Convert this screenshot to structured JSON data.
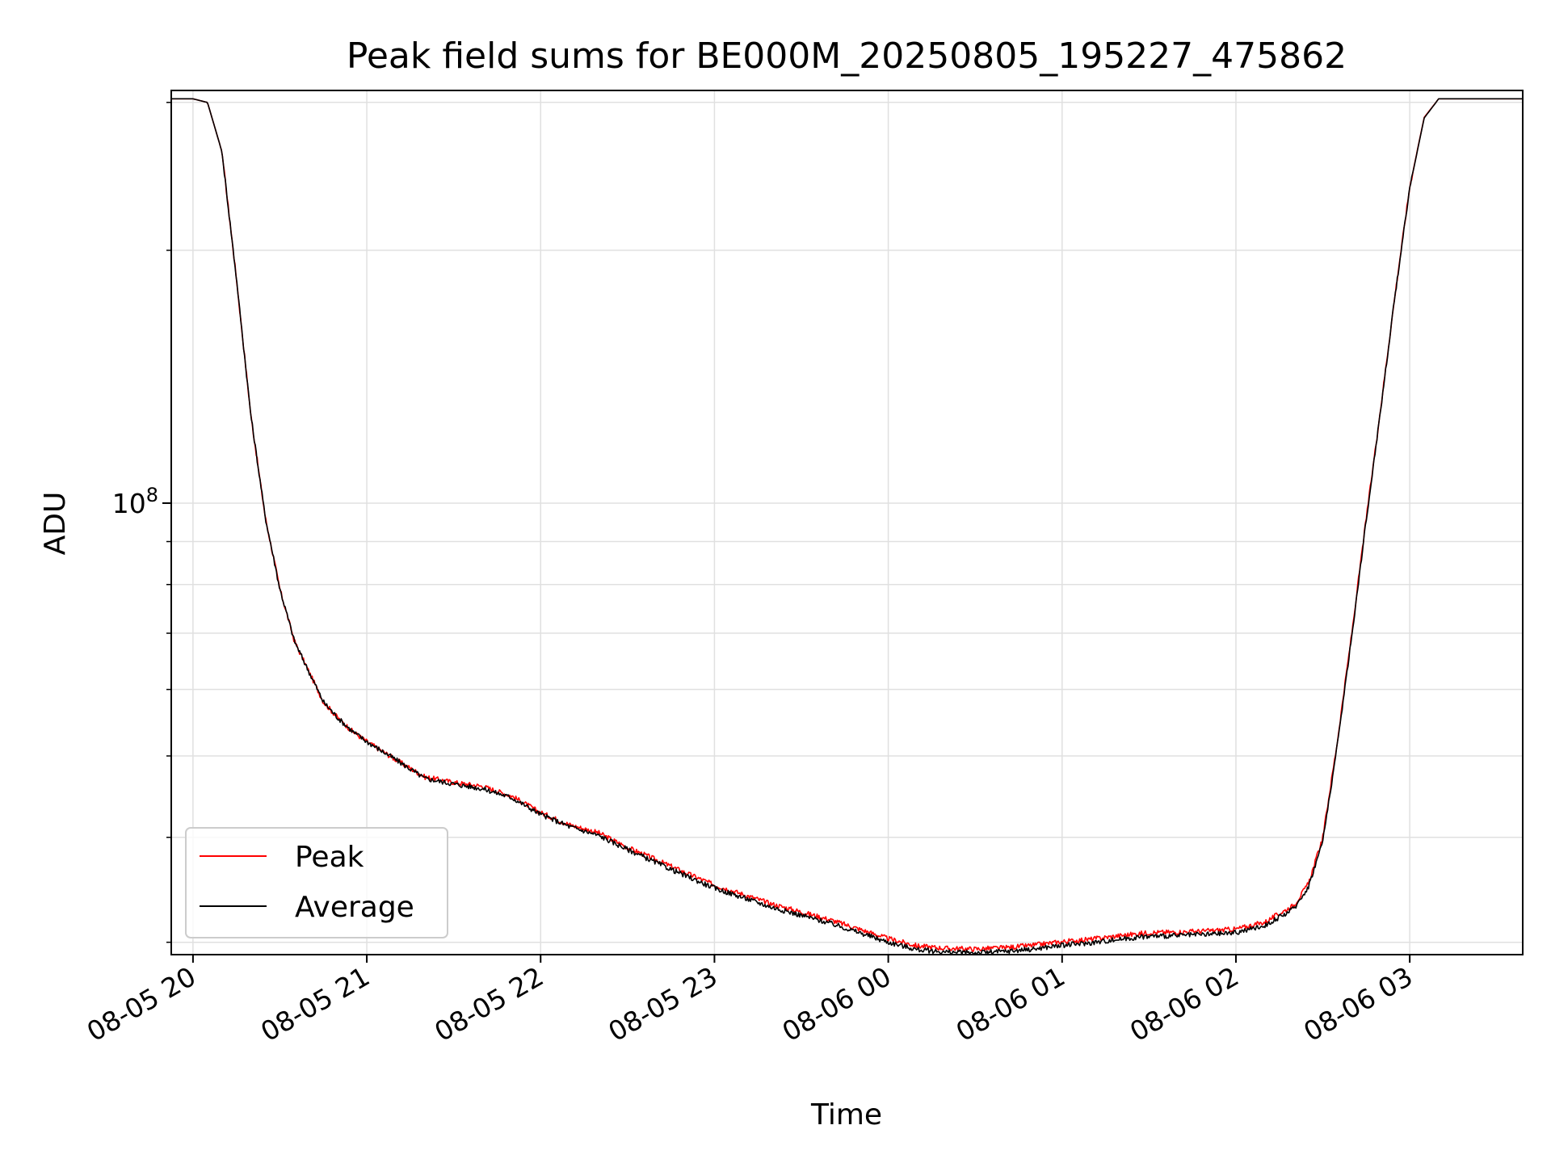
{
  "chart_data": {
    "type": "line",
    "title": "Peak field sums for BE000M_20250805_195227_475862",
    "xlabel": "Time",
    "ylabel": "ADU",
    "y_scale": "log",
    "y_tick_labels": [
      {
        "base": "10",
        "exp": "8",
        "value": 100000000
      }
    ],
    "ylim": [
      29000000,
      310000000
    ],
    "xlim": [
      "2025-08-05 19:52:30",
      "2025-08-06 03:39:00"
    ],
    "x_tick_labels": [
      "08-05 20",
      "08-05 21",
      "08-05 22",
      "08-05 23",
      "08-06 00",
      "08-06 01",
      "08-06 02",
      "08-06 03"
    ],
    "x_tick_times": [
      "2025-08-05 20:00",
      "2025-08-05 21:00",
      "2025-08-05 22:00",
      "2025-08-05 23:00",
      "2025-08-06 00:00",
      "2025-08-06 01:00",
      "2025-08-06 02:00",
      "2025-08-06 03:00"
    ],
    "grid": true,
    "legend": {
      "position": "lower left"
    },
    "x": [
      "2025-08-05 19:52:30",
      "2025-08-05 20:00",
      "2025-08-05 20:05",
      "2025-08-05 20:10",
      "2025-08-05 20:15",
      "2025-08-05 20:20",
      "2025-08-05 20:25",
      "2025-08-05 20:30",
      "2025-08-05 20:35",
      "2025-08-05 20:40",
      "2025-08-05 20:45",
      "2025-08-05 20:50",
      "2025-08-05 20:55",
      "2025-08-05 21:00",
      "2025-08-05 21:10",
      "2025-08-05 21:20",
      "2025-08-05 21:30",
      "2025-08-05 21:40",
      "2025-08-05 21:50",
      "2025-08-05 22:00",
      "2025-08-05 22:10",
      "2025-08-05 22:20",
      "2025-08-05 22:30",
      "2025-08-05 22:40",
      "2025-08-05 22:50",
      "2025-08-05 23:00",
      "2025-08-05 23:10",
      "2025-08-05 23:20",
      "2025-08-05 23:30",
      "2025-08-05 23:40",
      "2025-08-05 23:50",
      "2025-08-06 00:00",
      "2025-08-06 00:10",
      "2025-08-06 00:20",
      "2025-08-06 00:30",
      "2025-08-06 00:40",
      "2025-08-06 00:50",
      "2025-08-06 01:00",
      "2025-08-06 01:10",
      "2025-08-06 01:20",
      "2025-08-06 01:30",
      "2025-08-06 01:40",
      "2025-08-06 01:50",
      "2025-08-06 02:00",
      "2025-08-06 02:10",
      "2025-08-06 02:20",
      "2025-08-06 02:25",
      "2025-08-06 02:30",
      "2025-08-06 02:35",
      "2025-08-06 02:40",
      "2025-08-06 02:45",
      "2025-08-06 02:50",
      "2025-08-06 02:55",
      "2025-08-06 03:00",
      "2025-08-06 03:05",
      "2025-08-06 03:10",
      "2025-08-06 03:15",
      "2025-08-06 03:39"
    ],
    "series": [
      {
        "name": "Peak",
        "color": "#ff0000",
        "values": [
          303000000,
          303000000,
          300000000,
          262000000,
          185000000,
          127000000,
          96000000,
          79000000,
          68500000,
          63000000,
          58000000,
          55500000,
          53500000,
          52000000,
          49500000,
          47200000,
          46500000,
          46000000,
          44800000,
          42800000,
          41400000,
          40500000,
          38900000,
          37600000,
          36300000,
          35100000,
          34200000,
          33300000,
          32600000,
          31900000,
          31100000,
          30300000,
          29700000,
          29500000,
          29450000,
          29550000,
          29750000,
          30050000,
          30250000,
          30550000,
          30800000,
          30850000,
          30950000,
          31100000,
          31700000,
          33200000,
          35200000,
          40000000,
          52000000,
          70000000,
          96000000,
          130000000,
          178000000,
          238000000,
          288000000,
          303000000,
          303000000,
          303000000
        ]
      },
      {
        "name": "Average",
        "color": "#000000",
        "values": [
          303000000,
          303000000,
          300000000,
          262000000,
          185000000,
          127000000,
          96000000,
          79000000,
          68500000,
          63000000,
          58000000,
          55500000,
          53500000,
          52000000,
          49500000,
          47000000,
          46300000,
          45700000,
          44600000,
          42600000,
          41200000,
          40200000,
          38700000,
          37300000,
          36000000,
          34800000,
          33900000,
          33000000,
          32300000,
          31600000,
          30800000,
          30000000,
          29400000,
          29200000,
          29150000,
          29250000,
          29450000,
          29750000,
          29950000,
          30250000,
          30500000,
          30550000,
          30650000,
          30800000,
          31400000,
          32900000,
          34900000,
          39600000,
          51500000,
          69500000,
          95500000,
          129500000,
          177500000,
          237500000,
          287500000,
          303000000,
          303000000,
          303000000
        ]
      }
    ]
  }
}
